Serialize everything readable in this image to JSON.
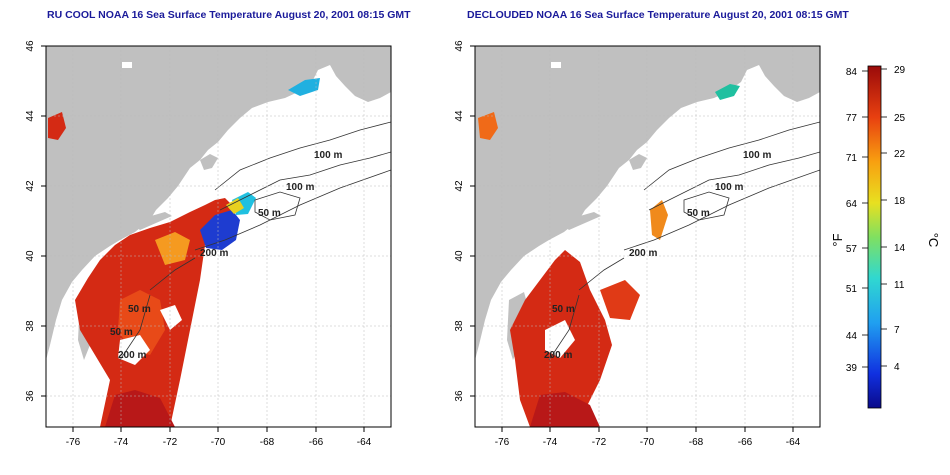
{
  "left_map": {
    "title": "RU COOL NOAA 16 Sea Surface Temperature August 20, 2001 08:15 GMT",
    "x_ticks": [
      "-76",
      "-74",
      "-72",
      "-70",
      "-68",
      "-66",
      "-64"
    ],
    "y_ticks": [
      "46",
      "44",
      "42",
      "40",
      "38",
      "36"
    ],
    "contour_labels": [
      "100 m",
      "100 m",
      "50 m",
      "200 m",
      "50 m",
      "200 m",
      "50 m"
    ]
  },
  "right_map": {
    "title": "DECLOUDED NOAA 16 Sea Surface Temperature August 20, 2001 08:15 GMT",
    "x_ticks": [
      "-76",
      "-74",
      "-72",
      "-70",
      "-68",
      "-66",
      "-64"
    ],
    "y_ticks": [
      "46",
      "44",
      "42",
      "40",
      "38",
      "36"
    ],
    "contour_labels": [
      "100 m",
      "100 m",
      "50 m",
      "200 m",
      "50 m",
      "200 m"
    ]
  },
  "colorbar": {
    "fahrenheit_label": "°F",
    "celsius_label": "°C",
    "fahrenheit_ticks": [
      "84",
      "77",
      "71",
      "64",
      "57",
      "51",
      "44",
      "39"
    ],
    "celsius_ticks": [
      "29",
      "25",
      "22",
      "18",
      "14",
      "11",
      "7",
      "4"
    ]
  },
  "colors": {
    "land": "#c0c0c0",
    "ocean": "#ffffff",
    "title": "#1a1a9a",
    "warm": "#d42a14",
    "cold": "#1e3cd0"
  }
}
